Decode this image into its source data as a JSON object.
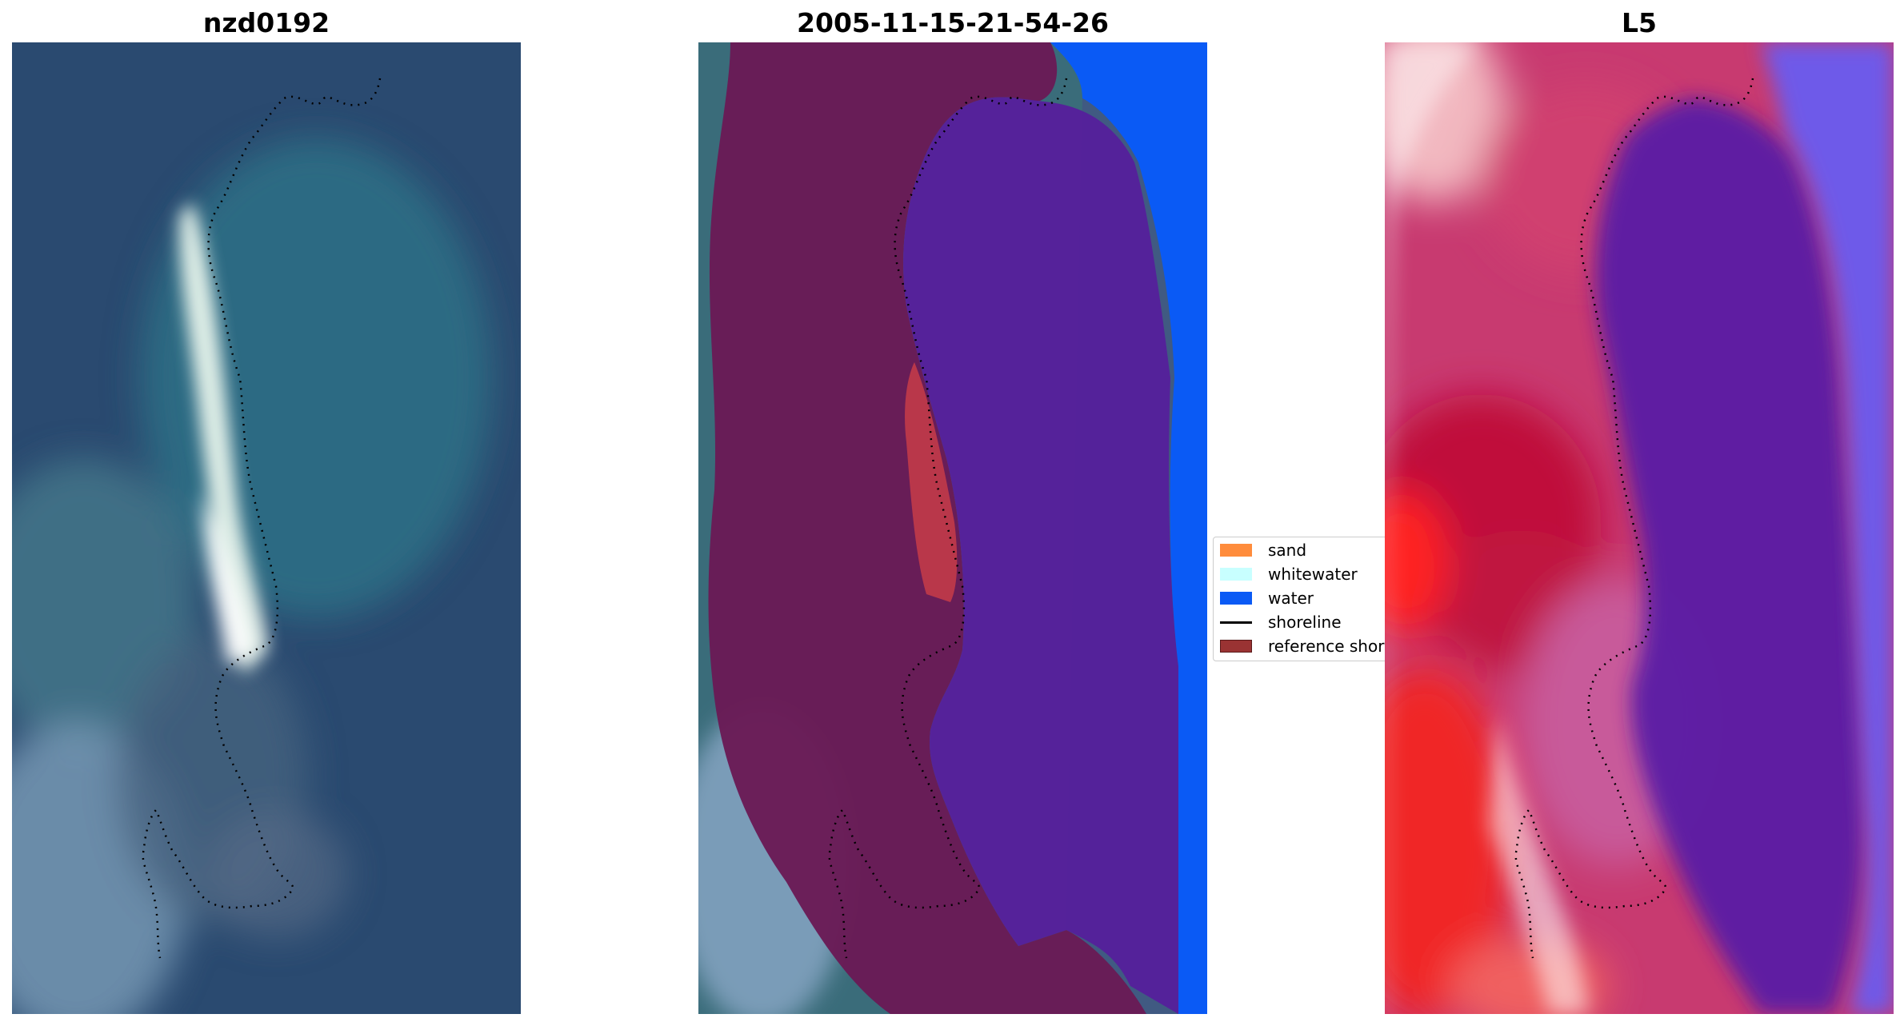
{
  "panels": {
    "rgb": {
      "title": "nzd0192"
    },
    "classified": {
      "title": "2005-11-15-21-54-26"
    },
    "mndwi": {
      "title": "L5"
    }
  },
  "legend": {
    "items": [
      {
        "label": "sand",
        "color": "#ff8c3c",
        "kind": "patch"
      },
      {
        "label": "whitewater",
        "color": "#c8ffff",
        "kind": "patch"
      },
      {
        "label": "water",
        "color": "#0a5af5",
        "kind": "patch"
      },
      {
        "label": "shoreline",
        "color": "#000000",
        "kind": "line"
      },
      {
        "label": "reference shoreline",
        "color": "#9a3333",
        "kind": "patch"
      }
    ]
  },
  "colors": {
    "ocean": "#2a4a70",
    "lagoon": "#2f6f85",
    "sand_bright": "#e8f4ec",
    "land_overlay": "#6a1a55",
    "water_class": "#55229a",
    "open_water": "#0a5af5",
    "index_high": "#ff2020",
    "index_mid": "#c83a70",
    "index_low": "#5a1aa5"
  }
}
